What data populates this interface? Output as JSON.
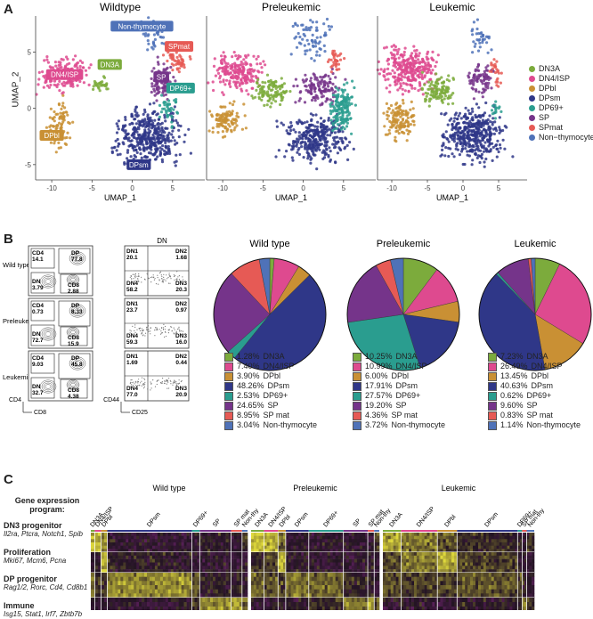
{
  "panel_labels": {
    "a": "A",
    "b": "B",
    "c": "C"
  },
  "colors": {
    "DN3A": "#7cab3c",
    "DN4/ISP": "#de4a8f",
    "DPbl": "#c99034",
    "DPsm": "#2f3788",
    "DP69+": "#2a9d8f",
    "SP": "#75348a",
    "SPmat": "#e65a55",
    "Non-thymocyte": "#4f72b8"
  },
  "umap": {
    "titles": [
      "Wildtype",
      "Preleukemic",
      "Leukemic"
    ],
    "ylabel": "UMAP_2",
    "xlabel": "UMAP_1",
    "x_ticks": [
      "-10",
      "-5",
      "0",
      "5"
    ],
    "y_ticks": [
      "5",
      "0",
      "-5"
    ],
    "cluster_labels": {
      "non_thymocyte": "Non-thymocyte",
      "spmat": "SPmat",
      "dn3a": "DN3A",
      "dn4isp": "DN4/ISP",
      "sp": "SP",
      "dp69": "DP69+",
      "dpbl": "DPbl",
      "dpsm": "DPsm"
    },
    "legend": [
      "DN3A",
      "DN4/ISP",
      "DPbl",
      "DPsm",
      "DP69+",
      "SP",
      "SPmat",
      "Non−thymocyte"
    ],
    "legend_keys": [
      "DN3A",
      "DN4/ISP",
      "DPbl",
      "DPsm",
      "DP69+",
      "SP",
      "SPmat",
      "Non-thymocyte"
    ]
  },
  "flow": {
    "dn_title": "DN",
    "row_labels": [
      "Wild type",
      "Preleukemic",
      "Leukemic"
    ],
    "cd4_axis": "CD4",
    "cd8_axis": "CD8",
    "cd44_axis": "CD44",
    "cd25_axis": "CD25",
    "gates_cd4cd8": [
      {
        "cd4": [
          "CD4",
          "14.1"
        ],
        "dp": [
          "DP",
          "77.8"
        ],
        "dn": [
          "DN",
          "3.79"
        ],
        "cd8": [
          "CD8",
          "2.88"
        ]
      },
      {
        "cd4": [
          "CD4",
          "0.73"
        ],
        "dp": [
          "DP",
          "8.33"
        ],
        "dn": [
          "DN",
          "72.7"
        ],
        "cd8": [
          "CD8",
          "15.9"
        ]
      },
      {
        "cd4": [
          "CD4",
          "9.03"
        ],
        "dp": [
          "DP",
          "45.8"
        ],
        "dn": [
          "DN",
          "32.7"
        ],
        "cd8": [
          "CD8",
          "4.38"
        ]
      }
    ],
    "gates_dn": [
      {
        "dn1": [
          "DN1",
          "20.1"
        ],
        "dn2": [
          "DN2",
          "1.68"
        ],
        "dn4": [
          "DN4",
          "58.2"
        ],
        "dn3": [
          "DN3",
          "20.3"
        ]
      },
      {
        "dn1": [
          "DN1",
          "23.7"
        ],
        "dn2": [
          "DN2",
          "0.97"
        ],
        "dn4": [
          "DN4",
          "59.3"
        ],
        "dn3": [
          "DN3",
          "16.0"
        ]
      },
      {
        "dn1": [
          "DN1",
          "1.69"
        ],
        "dn2": [
          "DN2",
          "0.44"
        ],
        "dn4": [
          "DN4",
          "77.0"
        ],
        "dn3": [
          "DN3",
          "20.9"
        ]
      }
    ]
  },
  "chart_data": [
    {
      "type": "pie",
      "title": "Wild type",
      "labels": [
        "DN3A",
        "DN4/ISP",
        "DPbl",
        "DPsm",
        "DP69+",
        "SP",
        "SP mat",
        "Non-thymocyte"
      ],
      "values": [
        1.28,
        7.4,
        3.9,
        48.26,
        2.53,
        24.65,
        8.95,
        3.04
      ],
      "value_labels": [
        "1.28%",
        "7.40%",
        "3.90%",
        "48.26%",
        "2.53%",
        "24.65%",
        "8.95%",
        "3.04%"
      ]
    },
    {
      "type": "pie",
      "title": "Preleukemic",
      "labels": [
        "DN3A",
        "DN4/ISP",
        "DPbl",
        "DPsm",
        "DP69+",
        "SP",
        "SP mat",
        "Non-thymocyte"
      ],
      "values": [
        10.25,
        10.99,
        6.0,
        17.91,
        27.57,
        19.2,
        4.36,
        3.72
      ],
      "value_labels": [
        "10.25%",
        "10.99%",
        "6.00%",
        "17.91%",
        "27.57%",
        "19.20%",
        "4.36%",
        "3.72%"
      ]
    },
    {
      "type": "pie",
      "title": "Leukemic",
      "labels": [
        "DN3A",
        "DN4/ISP",
        "DPbl",
        "DPsm",
        "DP69+",
        "SP",
        "SP mat",
        "Non-thymocyte"
      ],
      "values": [
        7.23,
        26.49,
        13.45,
        40.63,
        0.62,
        9.6,
        0.83,
        1.14
      ],
      "value_labels": [
        "7.23%",
        "26.49%",
        "13.45%",
        "40.63%",
        "0.62%",
        "9.60%",
        "0.83%",
        "1.14%"
      ]
    }
  ],
  "heatmap": {
    "titles": [
      "Wild type",
      "Preleukemic",
      "Leukemic"
    ],
    "program_header": "Gene expression program:",
    "programs": [
      {
        "name": "DN3 progenitor",
        "genes": "Il2ra, Ptcra, Notch1, Spib"
      },
      {
        "name": "Proliferation",
        "genes": "Mki67, Mcm6, Pcna"
      },
      {
        "name": "DP progenitor",
        "genes": "Rag1/2, Rorc, Cd4, Cd8b1"
      },
      {
        "name": "Immune",
        "genes": "Isg15, Stat1, Irf7, Zbtb7b"
      }
    ],
    "panels": [
      {
        "clusters": [
          [
            "DN3A",
            "DN3A",
            0.025
          ],
          [
            "DN4/ISP",
            "DN4/ISP",
            0.04
          ],
          [
            "DPbl",
            "DPbl",
            0.04
          ],
          [
            "DPsm",
            "DPsm",
            0.54
          ],
          [
            "DP69+",
            "DP69+",
            0.05
          ],
          [
            "SP",
            "SP",
            0.2
          ],
          [
            "SP mat",
            "SPmat",
            0.07
          ],
          [
            "Non-thy",
            "Non-thymocyte",
            0.035
          ]
        ]
      },
      {
        "clusters": [
          [
            "DN3A",
            "DN3A",
            0.1
          ],
          [
            "DN4/ISP",
            "DN4/ISP",
            0.11
          ],
          [
            "DPbl",
            "DPbl",
            0.06
          ],
          [
            "DPsm",
            "DPsm",
            0.18
          ],
          [
            "DP69+",
            "DP69+",
            0.27
          ],
          [
            "SP",
            "SP",
            0.19
          ],
          [
            "SP mat",
            "SPmat",
            0.05
          ],
          [
            "Non-thy",
            "Non-thymocyte",
            0.04
          ]
        ]
      },
      {
        "clusters": [
          [
            "DN3A",
            "DN3A",
            0.12
          ],
          [
            "DN4/ISP",
            "DN4/ISP",
            0.24
          ],
          [
            "DPbl",
            "DPbl",
            0.13
          ],
          [
            "DPsm",
            "DPsm",
            0.4
          ],
          [
            "DP69+",
            "DP69+",
            0.03
          ],
          [
            "SP mat",
            "SPmat",
            0.03
          ],
          [
            "Non-thy",
            "Non-thymocyte",
            0.05
          ]
        ]
      }
    ],
    "intensity": [
      [
        [
          1,
          1,
          0.7,
          0,
          0,
          0.1,
          0,
          0.2
        ],
        [
          0,
          0,
          0.9,
          0.1,
          0,
          0,
          0,
          0
        ],
        [
          0.6,
          0.2,
          0.2,
          0.7,
          0.4,
          0.1,
          0.1,
          0
        ],
        [
          0,
          0,
          0,
          0,
          0.2,
          0.7,
          0.9,
          0.5
        ]
      ],
      [
        [
          1,
          0.9,
          0.5,
          0,
          0,
          0,
          0,
          0.3
        ],
        [
          0.2,
          0.3,
          0.9,
          0.1,
          0,
          0,
          0,
          0
        ],
        [
          0.5,
          0.4,
          0.3,
          0.6,
          0.5,
          0.2,
          0.1,
          0
        ],
        [
          0,
          0,
          0,
          0,
          0.2,
          0.6,
          0.8,
          0.4
        ]
      ],
      [
        [
          0.8,
          0.6,
          0.4,
          0.2,
          0.1,
          0,
          0.2
        ],
        [
          0.3,
          0.6,
          0.9,
          0.3,
          0,
          0,
          0
        ],
        [
          0.4,
          0.3,
          0.3,
          0.4,
          0.3,
          0.1,
          0
        ],
        [
          0,
          0,
          0,
          0.1,
          0.2,
          0.7,
          0.3
        ]
      ]
    ]
  }
}
